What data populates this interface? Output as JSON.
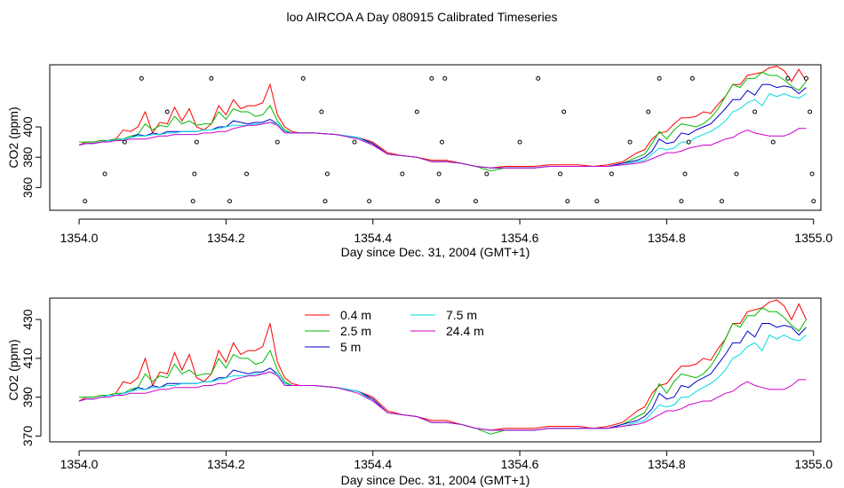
{
  "title": "loo AIRCOA A  Day 080915  Calibrated Timeseries",
  "colors": {
    "0.4 m": "#ff0000",
    "2.5 m": "#00bb00",
    "5 m": "#0000cc",
    "7.5 m": "#00dddd",
    "24.4 m": "#cc00cc"
  },
  "chart_data": [
    {
      "type": "line",
      "xlabel": "Day since Dec. 31, 2004 (GMT+1)",
      "ylabel": "CO2 (ppm)",
      "xlim": [
        1353.96,
        1355.01
      ],
      "ylim": [
        345,
        441
      ],
      "xticks": [
        1354.0,
        1354.2,
        1354.4,
        1354.6,
        1354.8,
        1355.0
      ],
      "xtick_labels": [
        "1354.0",
        "1354.2",
        "1354.4",
        "1354.6",
        "1354.8",
        "1355.0"
      ],
      "yticks": [
        360,
        380,
        400
      ],
      "ytick_labels": [
        "360",
        "380",
        "400"
      ],
      "legend": "none",
      "grid": false,
      "x": [
        1354.0,
        1354.01,
        1354.02,
        1354.03,
        1354.04,
        1354.05,
        1354.06,
        1354.07,
        1354.08,
        1354.09,
        1354.1,
        1354.11,
        1354.12,
        1354.13,
        1354.14,
        1354.15,
        1354.16,
        1354.17,
        1354.18,
        1354.19,
        1354.2,
        1354.21,
        1354.22,
        1354.23,
        1354.24,
        1354.25,
        1354.26,
        1354.27,
        1354.28,
        1354.29,
        1354.3,
        1354.32,
        1354.35,
        1354.38,
        1354.4,
        1354.42,
        1354.44,
        1354.46,
        1354.48,
        1354.5,
        1354.52,
        1354.54,
        1354.56,
        1354.58,
        1354.6,
        1354.62,
        1354.64,
        1354.66,
        1354.68,
        1354.7,
        1354.72,
        1354.74,
        1354.76,
        1354.77,
        1354.78,
        1354.79,
        1354.8,
        1354.81,
        1354.82,
        1354.83,
        1354.84,
        1354.85,
        1354.86,
        1354.87,
        1354.88,
        1354.89,
        1354.9,
        1354.91,
        1354.92,
        1354.93,
        1354.94,
        1354.95,
        1354.96,
        1354.97,
        1354.98,
        1354.99
      ],
      "series": [
        {
          "name": "0.4 m",
          "values": [
            388,
            390,
            390,
            391,
            391,
            392,
            398,
            397,
            400,
            410,
            396,
            403,
            402,
            413,
            404,
            412,
            400,
            398,
            402,
            414,
            408,
            418,
            412,
            414,
            414,
            416,
            428,
            408,
            400,
            397,
            396,
            396,
            395,
            393,
            390,
            383,
            381,
            380,
            378,
            378,
            376,
            374,
            373,
            374,
            374,
            374,
            375,
            375,
            375,
            374,
            375,
            377,
            383,
            385,
            392,
            396,
            397,
            402,
            406,
            406,
            407,
            410,
            409,
            415,
            420,
            428,
            428,
            434,
            435,
            436,
            439,
            440,
            437,
            430,
            438,
            430
          ]
        },
        {
          "name": "2.5 m",
          "values": [
            390,
            390,
            390,
            391,
            391,
            392,
            392,
            394,
            395,
            402,
            398,
            401,
            400,
            407,
            402,
            404,
            401,
            402,
            402,
            410,
            405,
            412,
            410,
            410,
            407,
            408,
            414,
            404,
            398,
            396,
            396,
            396,
            395,
            393,
            389,
            382,
            381,
            380,
            377,
            377,
            376,
            374,
            371,
            373,
            373,
            373,
            374,
            374,
            374,
            374,
            374,
            376,
            380,
            382,
            389,
            397,
            392,
            398,
            402,
            401,
            400,
            402,
            406,
            412,
            420,
            428,
            426,
            432,
            432,
            436,
            434,
            434,
            431,
            427,
            424,
            430
          ]
        },
        {
          "name": "5 m",
          "values": [
            388,
            389,
            389,
            390,
            391,
            391,
            392,
            393,
            395,
            394,
            396,
            395,
            397,
            397,
            397,
            397,
            397,
            398,
            398,
            400,
            400,
            404,
            403,
            402,
            403,
            403,
            405,
            402,
            397,
            396,
            396,
            396,
            395,
            393,
            389,
            382,
            381,
            380,
            377,
            377,
            376,
            374,
            373,
            373,
            373,
            373,
            374,
            374,
            374,
            374,
            374,
            376,
            378,
            380,
            384,
            392,
            389,
            390,
            396,
            395,
            398,
            400,
            402,
            407,
            412,
            418,
            418,
            424,
            421,
            428,
            428,
            426,
            427,
            426,
            422,
            426
          ]
        },
        {
          "name": "7.5 m",
          "values": [
            388,
            389,
            389,
            390,
            391,
            391,
            392,
            393,
            394,
            394,
            395,
            395,
            396,
            396,
            397,
            397,
            397,
            398,
            398,
            399,
            400,
            401,
            401,
            401,
            402,
            402,
            403,
            402,
            397,
            396,
            396,
            396,
            395,
            393,
            388,
            382,
            381,
            380,
            377,
            377,
            376,
            374,
            373,
            373,
            373,
            373,
            374,
            374,
            374,
            374,
            374,
            375,
            377,
            378,
            382,
            386,
            385,
            386,
            390,
            390,
            393,
            395,
            397,
            400,
            404,
            410,
            412,
            416,
            418,
            414,
            422,
            420,
            422,
            420,
            419,
            422
          ]
        },
        {
          "name": "24.4 m",
          "values": [
            388,
            389,
            389,
            390,
            390,
            391,
            391,
            392,
            392,
            392,
            393,
            394,
            394,
            395,
            395,
            395,
            395,
            396,
            396,
            397,
            397,
            399,
            400,
            401,
            401,
            402,
            403,
            401,
            396,
            396,
            396,
            396,
            395,
            392,
            388,
            382,
            381,
            380,
            377,
            377,
            376,
            374,
            373,
            373,
            373,
            373,
            374,
            374,
            374,
            374,
            374,
            375,
            376,
            377,
            379,
            381,
            383,
            383,
            384,
            386,
            387,
            388,
            388,
            390,
            392,
            393,
            396,
            398,
            396,
            395,
            394,
            394,
            394,
            396,
            399,
            399
          ]
        }
      ],
      "points": [
        {
          "x": 1354.008,
          "y": 351
        },
        {
          "x": 1354.035,
          "y": 369
        },
        {
          "x": 1354.062,
          "y": 390
        },
        {
          "x": 1354.085,
          "y": 432
        },
        {
          "x": 1354.12,
          "y": 410
        },
        {
          "x": 1354.155,
          "y": 351
        },
        {
          "x": 1354.157,
          "y": 369
        },
        {
          "x": 1354.16,
          "y": 390
        },
        {
          "x": 1354.18,
          "y": 432
        },
        {
          "x": 1354.205,
          "y": 351
        },
        {
          "x": 1354.228,
          "y": 369
        },
        {
          "x": 1354.27,
          "y": 390
        },
        {
          "x": 1354.305,
          "y": 432
        },
        {
          "x": 1354.33,
          "y": 410
        },
        {
          "x": 1354.335,
          "y": 351
        },
        {
          "x": 1354.338,
          "y": 369
        },
        {
          "x": 1354.375,
          "y": 390
        },
        {
          "x": 1354.395,
          "y": 351
        },
        {
          "x": 1354.44,
          "y": 369
        },
        {
          "x": 1354.46,
          "y": 410
        },
        {
          "x": 1354.48,
          "y": 432
        },
        {
          "x": 1354.488,
          "y": 351
        },
        {
          "x": 1354.49,
          "y": 369
        },
        {
          "x": 1354.494,
          "y": 390
        },
        {
          "x": 1354.498,
          "y": 432
        },
        {
          "x": 1354.54,
          "y": 351
        },
        {
          "x": 1354.555,
          "y": 369
        },
        {
          "x": 1354.6,
          "y": 390
        },
        {
          "x": 1354.625,
          "y": 432
        },
        {
          "x": 1354.655,
          "y": 369
        },
        {
          "x": 1354.66,
          "y": 410
        },
        {
          "x": 1354.665,
          "y": 351
        },
        {
          "x": 1354.705,
          "y": 351
        },
        {
          "x": 1354.725,
          "y": 369
        },
        {
          "x": 1354.75,
          "y": 390
        },
        {
          "x": 1354.775,
          "y": 410
        },
        {
          "x": 1354.79,
          "y": 432
        },
        {
          "x": 1354.82,
          "y": 351
        },
        {
          "x": 1354.825,
          "y": 369
        },
        {
          "x": 1354.83,
          "y": 390
        },
        {
          "x": 1354.835,
          "y": 432
        },
        {
          "x": 1354.875,
          "y": 351
        },
        {
          "x": 1354.895,
          "y": 369
        },
        {
          "x": 1354.92,
          "y": 410
        },
        {
          "x": 1354.945,
          "y": 390
        },
        {
          "x": 1354.965,
          "y": 432
        },
        {
          "x": 1354.99,
          "y": 432
        },
        {
          "x": 1354.995,
          "y": 410
        },
        {
          "x": 1354.998,
          "y": 369
        },
        {
          "x": 1355.0,
          "y": 351
        }
      ]
    },
    {
      "type": "line",
      "xlabel": "Day since Dec. 31, 2004 (GMT+1)",
      "ylabel": "CO2 (ppm)",
      "xlim": [
        1353.96,
        1355.01
      ],
      "ylim": [
        367,
        441
      ],
      "xticks": [
        1354.0,
        1354.2,
        1354.4,
        1354.6,
        1354.8,
        1355.0
      ],
      "xtick_labels": [
        "1354.0",
        "1354.2",
        "1354.4",
        "1354.6",
        "1354.8",
        "1355.0"
      ],
      "yticks": [
        370,
        390,
        410,
        430
      ],
      "ytick_labels": [
        "370",
        "390",
        "410",
        "430"
      ],
      "legend": "top-center",
      "grid": false,
      "series_ref": "same series as first panel"
    }
  ]
}
